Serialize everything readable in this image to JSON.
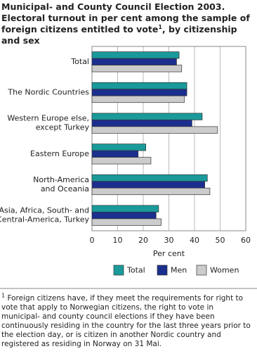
{
  "chart_data": {
    "type": "hbar",
    "title": "Municipal- and County Council Election 2003. Electoral turnout in per cent among the sample of foreign citizens entitled to vote",
    "title_footnote_mark": "1",
    "title_suffix": ", by citizenship and sex",
    "categories": [
      [
        "Total"
      ],
      [
        "The Nordic Countries"
      ],
      [
        "Western Europe else,",
        "except Turkey"
      ],
      [
        "Eastern Europe"
      ],
      [
        "North-America",
        "and Oceania"
      ],
      [
        "Asia, Africa, South- and",
        "Central-America, Turkey"
      ]
    ],
    "series": [
      {
        "name": "Total",
        "color": "#1a9a9a",
        "values": [
          34,
          37,
          43,
          21,
          45,
          26
        ]
      },
      {
        "name": "Men",
        "color": "#1c2f8e",
        "values": [
          33,
          37,
          39,
          18,
          44,
          25
        ]
      },
      {
        "name": "Women",
        "color": "#cccccc",
        "values": [
          35,
          36,
          49,
          23,
          46,
          27
        ]
      }
    ],
    "xlabel": "Per cent",
    "xlim": [
      0,
      60
    ],
    "xticks": [
      0,
      10,
      20,
      30,
      40,
      50,
      60
    ],
    "grid": true,
    "footnote_mark": "1",
    "footnote": "Foreign citizens have, if they meet the requirements for right to vote that apply to Norwegian citizens, the right to vote in municipal- and county council elections if they have been continuously residing in the country for the last three years prior to the election day, or is citizen in another Nordic country and registered as residing in Norway on 31 Mai."
  }
}
